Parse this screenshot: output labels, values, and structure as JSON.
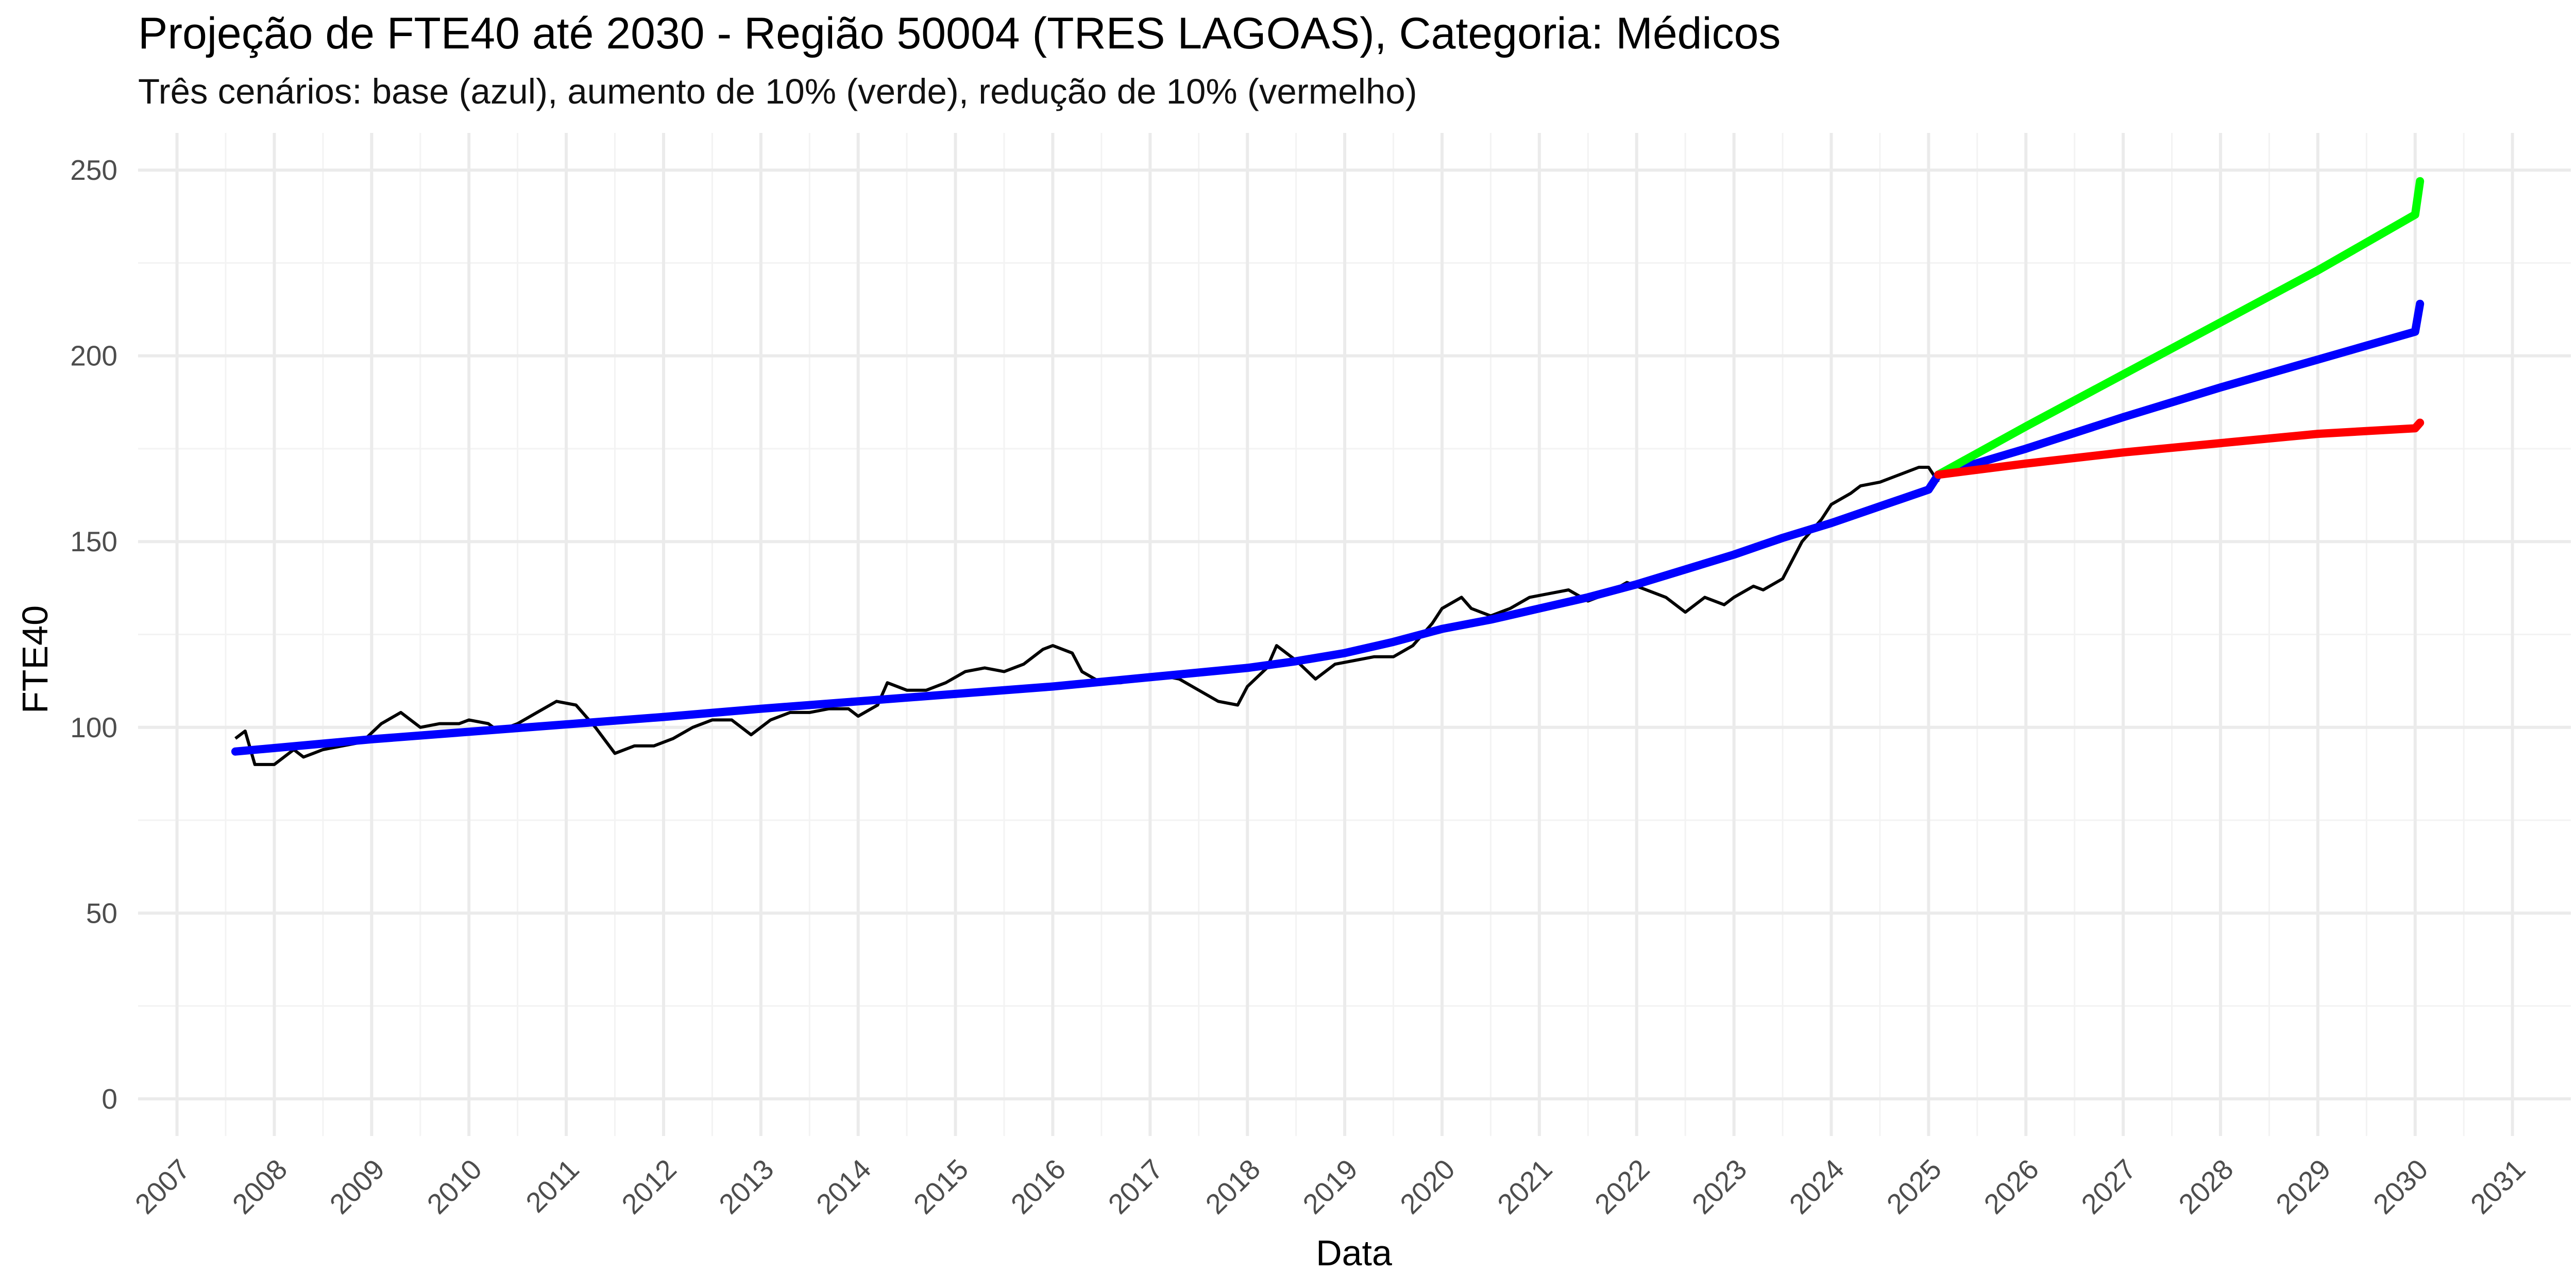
{
  "chart_data": {
    "type": "line",
    "title": "Projeção de FTE40 até 2030 - Região 50004 (TRES LAGOAS), Categoria: Médicos",
    "subtitle": "Três cenários: base (azul), aumento de 10% (verde), redução de 10% (vermelho)",
    "xlabel": "Data",
    "ylabel": "FTE40",
    "xlim": [
      2006.6,
      2031.6
    ],
    "ylim": [
      -10,
      260
    ],
    "y_ticks": [
      0,
      50,
      100,
      150,
      200,
      250
    ],
    "x_ticks": [
      "2007",
      "2008",
      "2009",
      "2010",
      "2011",
      "2012",
      "2013",
      "2014",
      "2015",
      "2016",
      "2017",
      "2018",
      "2019",
      "2020",
      "2021",
      "2022",
      "2023",
      "2024",
      "2025",
      "2026",
      "2027",
      "2028",
      "2029",
      "2030",
      "2031"
    ],
    "grid": true,
    "legend": "none",
    "series": [
      {
        "color": "#000000",
        "x": [
          2007.6,
          2007.7,
          2007.8,
          2008.0,
          2008.2,
          2008.3,
          2008.4,
          2008.5,
          2008.7,
          2008.9,
          2009.1,
          2009.3,
          2009.5,
          2009.7,
          2009.9,
          2010.0,
          2010.2,
          2010.3,
          2010.5,
          2010.7,
          2010.9,
          2011.1,
          2011.3,
          2011.5,
          2011.7,
          2011.9,
          2012.1,
          2012.3,
          2012.5,
          2012.7,
          2012.9,
          2013.1,
          2013.3,
          2013.5,
          2013.7,
          2013.9,
          2014.0,
          2014.2,
          2014.3,
          2014.5,
          2014.7,
          2014.9,
          2015.1,
          2015.3,
          2015.5,
          2015.7,
          2015.9,
          2016.0,
          2016.2,
          2016.3,
          2016.5,
          2016.7,
          2016.9,
          2017.1,
          2017.3,
          2017.5,
          2017.7,
          2017.9,
          2018.0,
          2018.2,
          2018.3,
          2018.5,
          2018.7,
          2018.9,
          2019.1,
          2019.3,
          2019.5,
          2019.7,
          2019.9,
          2020.0,
          2020.2,
          2020.3,
          2020.5,
          2020.7,
          2020.9,
          2021.1,
          2021.3,
          2021.5,
          2021.7,
          2021.9,
          2022.0,
          2022.2,
          2022.3,
          2022.5,
          2022.7,
          2022.9,
          2023.0,
          2023.2,
          2023.3,
          2023.5,
          2023.7,
          2023.9,
          2024.0,
          2024.2,
          2024.3,
          2024.5,
          2024.7,
          2024.9,
          2025.0,
          2025.1
        ],
        "y": [
          97,
          99,
          90,
          90,
          94,
          92,
          93,
          94,
          95,
          96,
          101,
          104,
          100,
          101,
          101,
          102,
          101,
          99,
          101,
          104,
          107,
          106,
          100,
          93,
          95,
          95,
          97,
          100,
          102,
          102,
          98,
          102,
          104,
          104,
          105,
          105,
          103,
          106,
          112,
          110,
          110,
          112,
          115,
          116,
          115,
          117,
          121,
          122,
          120,
          115,
          112,
          112,
          113,
          114,
          113,
          110,
          107,
          106,
          111,
          116,
          122,
          118,
          113,
          117,
          118,
          119,
          119,
          122,
          128,
          132,
          135,
          132,
          130,
          132,
          135,
          136,
          137,
          134,
          136,
          139,
          138,
          136,
          135,
          131,
          135,
          133,
          135,
          138,
          137,
          140,
          150,
          156,
          160,
          163,
          165,
          166,
          168,
          170,
          170,
          166
        ]
      },
      {
        "name": "base (azul)",
        "color": "#0000ff",
        "x": [
          2007.6,
          2009.0,
          2010.0,
          2011.0,
          2012.0,
          2013.0,
          2014.0,
          2015.0,
          2016.0,
          2017.0,
          2018.0,
          2018.5,
          2019.0,
          2019.5,
          2020.0,
          2020.5,
          2021.0,
          2021.5,
          2022.0,
          2022.5,
          2023.0,
          2023.5,
          2024.0,
          2024.5,
          2025.0,
          2025.1
        ],
        "y": [
          93.5,
          96.8,
          98.8,
          100.8,
          102.8,
          105,
          107,
          109,
          111,
          113.5,
          116,
          117.8,
          120,
          123,
          126.5,
          129,
          132,
          135,
          138.5,
          142.5,
          146.5,
          151,
          155,
          159.5,
          164,
          168
        ]
      },
      {
        "name": "base (azul)",
        "color": "#0000ff",
        "x": [
          2025.1,
          2026.0,
          2027.0,
          2028.0,
          2029.0,
          2030.0,
          2030.05
        ],
        "y": [
          168,
          175,
          183.5,
          191.5,
          199,
          206.5,
          214
        ]
      },
      {
        "name": "aumento de 10% (verde)",
        "color": "#00ff00",
        "x": [
          2025.1,
          2026.0,
          2027.0,
          2028.0,
          2029.0,
          2030.0,
          2030.05
        ],
        "y": [
          168,
          181,
          195,
          209,
          223,
          238,
          247
        ]
      },
      {
        "name": "redução de 10% (vermelho)",
        "color": "#ff0000",
        "x": [
          2025.1,
          2026.0,
          2027.0,
          2028.0,
          2029.0,
          2030.0,
          2030.05
        ],
        "y": [
          168,
          171,
          174,
          176.5,
          179,
          180.5,
          182
        ]
      }
    ]
  }
}
